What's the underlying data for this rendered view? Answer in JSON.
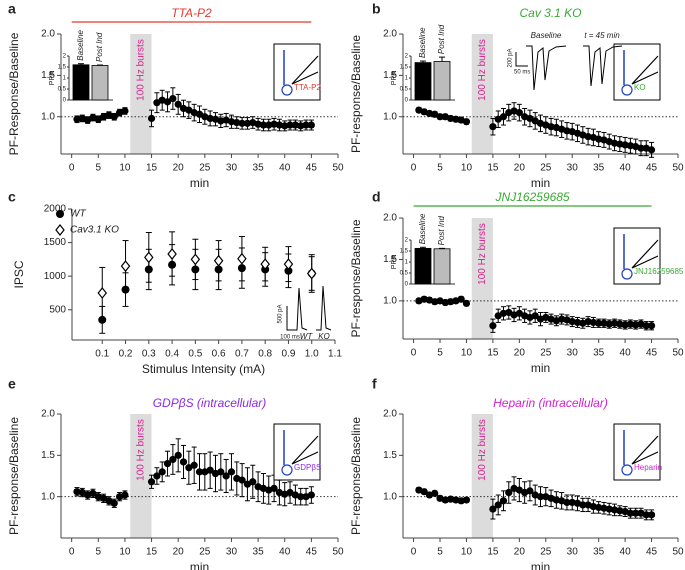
{
  "chart_data": [
    {
      "type": "scatter",
      "panel": "a",
      "title": "TTA-P2",
      "title_color": "#e53a2f",
      "drug_bar": [
        0,
        45
      ],
      "shade": [
        11,
        15
      ],
      "shade_label": "100 Hz bursts",
      "hline": 1,
      "x": [
        1,
        2,
        3,
        4,
        5,
        6,
        7,
        8,
        9,
        10,
        15,
        16,
        17,
        18,
        19,
        20,
        21,
        22,
        23,
        24,
        25,
        26,
        27,
        28,
        29,
        30,
        31,
        32,
        33,
        34,
        35,
        36,
        37,
        38,
        39,
        40,
        41,
        42,
        43,
        44,
        45
      ],
      "values": [
        0.97,
        0.98,
        0.96,
        0.99,
        0.97,
        1.0,
        1.02,
        1.0,
        1.05,
        1.07,
        0.98,
        1.17,
        1.2,
        1.18,
        1.22,
        1.15,
        1.1,
        1.08,
        1.05,
        1.03,
        1.0,
        0.98,
        0.97,
        0.95,
        0.96,
        0.94,
        0.93,
        0.92,
        0.92,
        0.93,
        0.91,
        0.9,
        0.9,
        0.91,
        0.9,
        0.89,
        0.9,
        0.9,
        0.89,
        0.9,
        0.9
      ],
      "errors": [
        0.04,
        0.04,
        0.04,
        0.04,
        0.04,
        0.04,
        0.04,
        0.04,
        0.04,
        0.04,
        0.1,
        0.12,
        0.12,
        0.12,
        0.13,
        0.12,
        0.1,
        0.1,
        0.1,
        0.1,
        0.09,
        0.09,
        0.08,
        0.08,
        0.08,
        0.08,
        0.07,
        0.07,
        0.07,
        0.07,
        0.07,
        0.07,
        0.07,
        0.07,
        0.07,
        0.06,
        0.06,
        0.06,
        0.06,
        0.06,
        0.06
      ],
      "color": "#000000",
      "xlim": [
        -2,
        50
      ],
      "xticks": [
        0,
        5,
        10,
        15,
        20,
        25,
        30,
        35,
        40,
        45,
        50
      ],
      "ylim": [
        0.55,
        2.0
      ],
      "yticks": [
        {
          "value": 1,
          "label": "1.0"
        },
        {
          "value": 1.5,
          "label": "1.5"
        },
        {
          "value": 2,
          "label": "2.0"
        }
      ],
      "xlabel": "min",
      "ylabel": "PF-Response/Baseline",
      "icon_label": "TTA-P2",
      "inset": {
        "type": "bar",
        "categories": [
          "Baseline",
          "Post Ind"
        ],
        "values": [
          1.6,
          1.57
        ],
        "errors": [
          0.05,
          0.02
        ],
        "colors": [
          "#000000",
          "#bbbbbb"
        ],
        "ylim": [
          0,
          2
        ],
        "yticks": [
          0,
          0.5,
          1,
          1.5,
          2
        ],
        "ylabel": "PPR"
      }
    },
    {
      "type": "scatter",
      "panel": "b",
      "title": "Cav 3.1 KO",
      "title_color": "#3aa935",
      "shade": [
        11,
        15
      ],
      "shade_label": "100 Hz bursts",
      "hline": 1,
      "x": [
        1,
        2,
        3,
        4,
        5,
        6,
        7,
        8,
        9,
        10,
        15,
        16,
        17,
        18,
        19,
        20,
        21,
        22,
        23,
        24,
        25,
        26,
        27,
        28,
        29,
        30,
        31,
        32,
        33,
        34,
        35,
        36,
        37,
        38,
        39,
        40,
        41,
        42,
        43,
        44,
        45
      ],
      "values": [
        1.08,
        1.06,
        1.04,
        1.03,
        1.0,
        1.0,
        0.98,
        0.97,
        0.96,
        0.94,
        0.88,
        0.97,
        1.0,
        1.05,
        1.07,
        1.05,
        1.0,
        0.98,
        0.95,
        0.92,
        0.9,
        0.88,
        0.87,
        0.85,
        0.83,
        0.82,
        0.8,
        0.78,
        0.76,
        0.75,
        0.73,
        0.72,
        0.7,
        0.68,
        0.67,
        0.66,
        0.65,
        0.64,
        0.62,
        0.62,
        0.6
      ],
      "errors": [
        0.03,
        0.03,
        0.03,
        0.03,
        0.03,
        0.03,
        0.03,
        0.03,
        0.03,
        0.03,
        0.1,
        0.1,
        0.1,
        0.1,
        0.1,
        0.1,
        0.1,
        0.1,
        0.1,
        0.1,
        0.1,
        0.1,
        0.1,
        0.1,
        0.1,
        0.1,
        0.1,
        0.1,
        0.1,
        0.1,
        0.09,
        0.09,
        0.09,
        0.09,
        0.09,
        0.09,
        0.09,
        0.09,
        0.09,
        0.09,
        0.09
      ],
      "color": "#000000",
      "xlim": [
        -2,
        50
      ],
      "xticks": [
        0,
        5,
        10,
        15,
        20,
        25,
        30,
        35,
        40,
        45,
        50
      ],
      "ylim": [
        0.55,
        2.0
      ],
      "yticks": [
        {
          "value": 1,
          "label": "1.0"
        },
        {
          "value": 1.5,
          "label": "1.5"
        },
        {
          "value": 2,
          "label": "2.0"
        }
      ],
      "xlabel": "min",
      "ylabel": "PF-response/Baseline",
      "icon_label": "KO",
      "inset": {
        "type": "bar",
        "categories": [
          "Baseline",
          "Post Ind"
        ],
        "values": [
          1.7,
          1.75
        ],
        "errors": [
          0.07,
          0.2
        ],
        "colors": [
          "#000000",
          "#bbbbbb"
        ],
        "ylim": [
          0,
          2
        ],
        "yticks": [
          0,
          0.5,
          1,
          1.5,
          2
        ],
        "ylabel": "PPR"
      },
      "traces": {
        "labels": [
          "Baseline",
          "t = 45 min",
          "200 pA",
          "50 ms"
        ]
      }
    },
    {
      "type": "errorbar",
      "panel": "c",
      "x": [
        0.1,
        0.2,
        0.3,
        0.4,
        0.5,
        0.6,
        0.7,
        0.8,
        0.9,
        1.0
      ],
      "series": [
        {
          "name": "WT",
          "marker": "circle",
          "color": "#000000",
          "values": [
            350,
            800,
            1100,
            1170,
            1100,
            1100,
            1120,
            1100,
            1080,
            1040
          ],
          "errors": [
            200,
            250,
            300,
            300,
            300,
            300,
            300,
            250,
            250,
            250
          ]
        },
        {
          "name": "Cav3.1 KO",
          "marker": "diamond",
          "color": "#000000",
          "values": [
            750,
            1150,
            1280,
            1330,
            1250,
            1230,
            1260,
            1180,
            1180,
            1040
          ],
          "errors": [
            380,
            380,
            370,
            330,
            300,
            300,
            330,
            250,
            260,
            280
          ]
        }
      ],
      "xlim": [
        -0.03,
        1.1
      ],
      "xticks": [
        0.1,
        0.2,
        0.3,
        0.4,
        0.5,
        0.6,
        0.7,
        0.8,
        0.9,
        {
          "value": 1,
          "label": "1.0"
        },
        1.1
      ],
      "ylim": [
        50,
        2000
      ],
      "yticks": [
        500,
        1000,
        1500,
        2000
      ],
      "xlabel": "Stimulus Intensity (mA)",
      "ylabel": "IPSC",
      "legend": "upper left",
      "traces": {
        "labels": [
          "500 pA",
          "100 ms",
          "WT",
          "KO"
        ]
      }
    },
    {
      "type": "scatter",
      "panel": "d",
      "title": "JNJ16259685",
      "title_color": "#3aa935",
      "drug_bar": [
        0,
        45
      ],
      "shade": [
        11,
        15
      ],
      "shade_label": "100 Hz bursts",
      "hline": 1,
      "x": [
        1,
        2,
        3,
        4,
        5,
        6,
        7,
        8,
        9,
        10,
        15,
        16,
        17,
        18,
        19,
        20,
        21,
        22,
        23,
        24,
        25,
        26,
        27,
        28,
        29,
        30,
        31,
        32,
        33,
        34,
        35,
        36,
        37,
        38,
        39,
        40,
        41,
        42,
        43,
        44,
        45
      ],
      "values": [
        1.0,
        1.02,
        1.01,
        0.99,
        1.0,
        0.98,
        0.99,
        1.0,
        1.02,
        0.97,
        0.7,
        0.82,
        0.85,
        0.86,
        0.83,
        0.85,
        0.82,
        0.8,
        0.82,
        0.78,
        0.8,
        0.78,
        0.76,
        0.78,
        0.77,
        0.75,
        0.74,
        0.73,
        0.75,
        0.74,
        0.73,
        0.73,
        0.72,
        0.73,
        0.72,
        0.71,
        0.72,
        0.71,
        0.72,
        0.7,
        0.7
      ],
      "errors": [
        0.03,
        0.03,
        0.03,
        0.03,
        0.03,
        0.03,
        0.03,
        0.03,
        0.03,
        0.03,
        0.08,
        0.08,
        0.08,
        0.08,
        0.08,
        0.08,
        0.08,
        0.08,
        0.08,
        0.08,
        0.06,
        0.06,
        0.06,
        0.06,
        0.06,
        0.06,
        0.06,
        0.06,
        0.06,
        0.06,
        0.05,
        0.05,
        0.05,
        0.05,
        0.05,
        0.05,
        0.05,
        0.05,
        0.05,
        0.05,
        0.05
      ],
      "color": "#000000",
      "xlim": [
        -2,
        50
      ],
      "xticks": [
        0,
        5,
        10,
        15,
        20,
        25,
        30,
        35,
        40,
        45,
        50
      ],
      "ylim": [
        0.54,
        2.0
      ],
      "yticks": [
        {
          "value": 1,
          "label": "1.0"
        },
        {
          "value": 1.5,
          "label": "1.5"
        },
        {
          "value": 2,
          "label": "2.0"
        }
      ],
      "xlabel": "min",
      "ylabel": "PF-response/Baseline",
      "icon_label": "JNJ16259685",
      "inset": {
        "type": "bar",
        "categories": [
          "Baseline",
          "Post Ind"
        ],
        "values": [
          1.62,
          1.6
        ],
        "errors": [
          0.05,
          0.02
        ],
        "colors": [
          "#000000",
          "#bbbbbb"
        ],
        "ylim": [
          0,
          2
        ],
        "yticks": [
          0,
          0.5,
          1,
          1.5,
          2
        ],
        "ylabel": "PPR"
      }
    },
    {
      "type": "scatter",
      "panel": "e",
      "title": "GDPβS (intracellular)",
      "title_color": "#8a2be2",
      "shade": [
        11,
        15
      ],
      "shade_label": "100 Hz bursts",
      "hline": 1,
      "x": [
        1,
        2,
        3,
        4,
        5,
        6,
        7,
        8,
        9,
        10,
        15,
        16,
        17,
        18,
        19,
        20,
        21,
        22,
        23,
        24,
        25,
        26,
        27,
        28,
        29,
        30,
        31,
        32,
        33,
        34,
        35,
        36,
        37,
        38,
        39,
        40,
        41,
        42,
        43,
        44,
        45
      ],
      "values": [
        1.06,
        1.05,
        1.02,
        1.04,
        1.0,
        0.98,
        0.95,
        0.92,
        1.0,
        1.02,
        1.18,
        1.25,
        1.3,
        1.4,
        1.45,
        1.5,
        1.42,
        1.35,
        1.38,
        1.3,
        1.3,
        1.32,
        1.28,
        1.3,
        1.25,
        1.3,
        1.22,
        1.2,
        1.15,
        1.18,
        1.12,
        1.1,
        1.08,
        1.1,
        1.05,
        1.03,
        1.05,
        1.02,
        1.0,
        1.0,
        1.02
      ],
      "errors": [
        0.05,
        0.05,
        0.05,
        0.05,
        0.05,
        0.05,
        0.05,
        0.05,
        0.05,
        0.05,
        0.08,
        0.1,
        0.12,
        0.15,
        0.18,
        0.2,
        0.2,
        0.2,
        0.22,
        0.22,
        0.22,
        0.22,
        0.22,
        0.22,
        0.2,
        0.22,
        0.2,
        0.2,
        0.2,
        0.2,
        0.18,
        0.18,
        0.17,
        0.16,
        0.15,
        0.14,
        0.13,
        0.12,
        0.1,
        0.1,
        0.1
      ],
      "color": "#000000",
      "xlim": [
        -2,
        50
      ],
      "xticks": [
        0,
        5,
        10,
        15,
        20,
        25,
        30,
        35,
        40,
        45,
        50
      ],
      "ylim": [
        0.5,
        2.0
      ],
      "yticks": [
        {
          "value": 1,
          "label": "1.0"
        },
        {
          "value": 1.5,
          "label": "1.5"
        },
        {
          "value": 2,
          "label": "2.0"
        }
      ],
      "xlabel": "min",
      "ylabel": "PF-response/Baseline",
      "icon_label": "GDPβS"
    },
    {
      "type": "scatter",
      "panel": "f",
      "title": "Heparin (intracellular)",
      "title_color": "#d21fd0",
      "shade": [
        11,
        15
      ],
      "shade_label": "100 Hz bursts",
      "hline": 1,
      "x": [
        1,
        2,
        3,
        4,
        5,
        6,
        7,
        8,
        9,
        10,
        15,
        16,
        17,
        18,
        19,
        20,
        21,
        22,
        23,
        24,
        25,
        26,
        27,
        28,
        29,
        30,
        31,
        32,
        33,
        34,
        35,
        36,
        37,
        38,
        39,
        40,
        41,
        42,
        43,
        44,
        45
      ],
      "values": [
        1.08,
        1.06,
        1.02,
        1.04,
        0.98,
        0.96,
        0.97,
        0.96,
        0.95,
        0.96,
        0.85,
        0.9,
        0.95,
        1.05,
        1.1,
        1.08,
        1.05,
        1.07,
        1.02,
        1.0,
        1.0,
        0.98,
        0.96,
        0.95,
        0.93,
        0.93,
        0.92,
        0.9,
        0.9,
        0.88,
        0.87,
        0.86,
        0.85,
        0.84,
        0.83,
        0.82,
        0.8,
        0.8,
        0.8,
        0.78,
        0.78
      ],
      "errors": [
        0.03,
        0.03,
        0.03,
        0.03,
        0.03,
        0.03,
        0.03,
        0.03,
        0.03,
        0.03,
        0.12,
        0.12,
        0.12,
        0.13,
        0.14,
        0.14,
        0.13,
        0.12,
        0.12,
        0.12,
        0.11,
        0.1,
        0.1,
        0.1,
        0.09,
        0.09,
        0.09,
        0.08,
        0.08,
        0.08,
        0.07,
        0.07,
        0.07,
        0.07,
        0.06,
        0.06,
        0.06,
        0.06,
        0.06,
        0.06,
        0.06
      ],
      "color": "#000000",
      "xlim": [
        -2,
        50
      ],
      "xticks": [
        0,
        5,
        10,
        15,
        20,
        25,
        30,
        35,
        40,
        45,
        50
      ],
      "ylim": [
        0.5,
        2.0
      ],
      "yticks": [
        {
          "value": 1,
          "label": "1.0"
        },
        {
          "value": 1.5,
          "label": "1.5"
        },
        {
          "value": 2,
          "label": "2.0"
        }
      ],
      "xlabel": "min",
      "ylabel": "PF-response/Baseline",
      "icon_label": "Heparin"
    }
  ]
}
